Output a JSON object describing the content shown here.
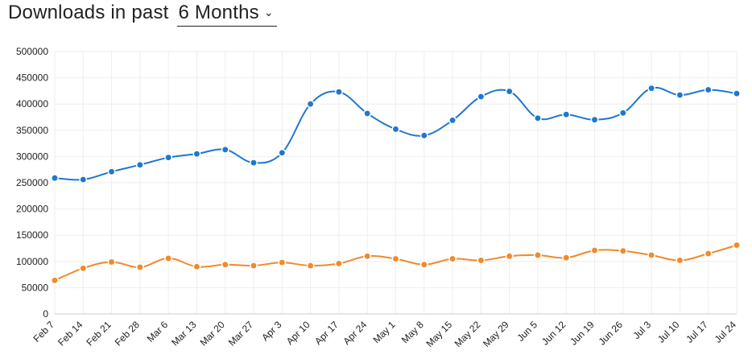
{
  "header": {
    "prefix": "Downloads in past",
    "period": "6 Months",
    "chevron_icon": "chevron-down-icon"
  },
  "colors": {
    "series_1": "#1f77d0",
    "series_2": "#f2892a",
    "grid": "#eeeeee"
  },
  "chart_data": {
    "type": "line",
    "title": "",
    "xlabel": "",
    "ylabel": "",
    "ylim": [
      0,
      500000
    ],
    "yticks": [
      "0",
      "50000",
      "100000",
      "150000",
      "200000",
      "250000",
      "300000",
      "350000",
      "400000",
      "450000",
      "500000"
    ],
    "grid": true,
    "categories": [
      "Feb 7",
      "Feb 14",
      "Feb 21",
      "Feb 28",
      "Mar 6",
      "Mar 13",
      "Mar 20",
      "Mar 27",
      "Apr 3",
      "Apr 10",
      "Apr 17",
      "Apr 24",
      "May 1",
      "May 8",
      "May 15",
      "May 22",
      "May 29",
      "Jun 5",
      "Jun 12",
      "Jun 19",
      "Jun 26",
      "Jul 3",
      "Jul 10",
      "Jul 17",
      "Jul 24"
    ],
    "series": [
      {
        "values": [
          259000,
          256000,
          271000,
          284000,
          298000,
          305000,
          313000,
          288000,
          307000,
          400000,
          423000,
          382000,
          352000,
          340000,
          369000,
          414000,
          424000,
          373000,
          380000,
          370000,
          383000,
          430000,
          417000,
          427000,
          420000
        ]
      },
      {
        "values": [
          64000,
          87000,
          99000,
          89000,
          106000,
          90000,
          94000,
          92000,
          98000,
          92000,
          96000,
          110000,
          105000,
          94000,
          105000,
          102000,
          110000,
          112000,
          107000,
          121000,
          120000,
          112000,
          102000,
          115000,
          131000
        ]
      }
    ]
  }
}
